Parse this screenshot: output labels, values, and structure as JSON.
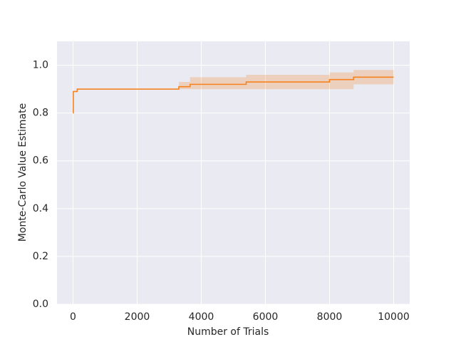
{
  "chart_data": {
    "type": "line",
    "xlabel": "Number of Trials",
    "ylabel": "Monte-Carlo Value Estimate",
    "x": [
      0,
      10,
      10,
      130,
      130,
      3300,
      3300,
      3650,
      3650,
      5400,
      5400,
      8000,
      8000,
      8750,
      8750,
      10000
    ],
    "series": [
      {
        "color": "#f5821f",
        "values": [
          0.8,
          0.8,
          0.89,
          0.89,
          0.9,
          0.9,
          0.91,
          0.91,
          0.92,
          0.92,
          0.93,
          0.93,
          0.94,
          0.94,
          0.95,
          0.95
        ],
        "lower": [
          0.8,
          0.8,
          0.89,
          0.89,
          0.9,
          0.9,
          0.9,
          0.9,
          0.9,
          0.9,
          0.9,
          0.9,
          0.9,
          0.9,
          0.92,
          0.92
        ],
        "upper": [
          0.8,
          0.8,
          0.89,
          0.89,
          0.9,
          0.9,
          0.93,
          0.93,
          0.95,
          0.95,
          0.96,
          0.96,
          0.97,
          0.97,
          0.98,
          0.98
        ]
      }
    ],
    "xlim": [
      -500,
      10500
    ],
    "ylim": [
      0,
      1.1
    ],
    "xticks": [
      0,
      2000,
      4000,
      6000,
      8000,
      10000
    ],
    "yticks": [
      {
        "value": 0,
        "label": "0.0"
      },
      0.2,
      0.4,
      0.6,
      0.8,
      {
        "value": 1,
        "label": "1.0"
      }
    ],
    "grid": true
  }
}
